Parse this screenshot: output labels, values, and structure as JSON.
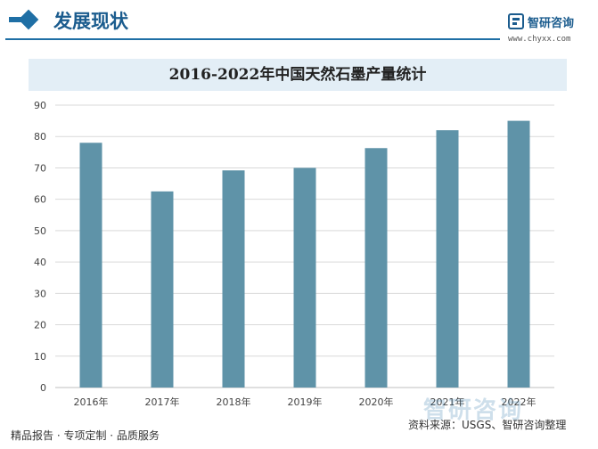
{
  "header": {
    "section_title": "发展现状",
    "logo_name": "智研咨询",
    "logo_url": "www.chyxx.com"
  },
  "chart_data": {
    "type": "bar",
    "title": "2016-2022年中国天然石墨产量统计",
    "categories": [
      "2016年",
      "2017年",
      "2018年",
      "2019年",
      "2020年",
      "2021年",
      "2022年"
    ],
    "values": [
      78,
      62.5,
      69.2,
      70,
      76.3,
      82,
      85
    ],
    "xlabel": "",
    "ylabel": "",
    "ylim": [
      0,
      90
    ],
    "yticks": [
      0,
      10,
      20,
      30,
      40,
      50,
      60,
      70,
      80,
      90
    ],
    "grid": true,
    "legend": "none",
    "colors": {
      "bar": "#5f93a8",
      "grid": "#d9d9d9",
      "axis": "#bfbfbf"
    }
  },
  "footer": {
    "left": "精品报告 · 专项定制 · 品质服务",
    "source": "资料来源：USGS、智研咨询整理",
    "watermark": "智研咨询"
  }
}
